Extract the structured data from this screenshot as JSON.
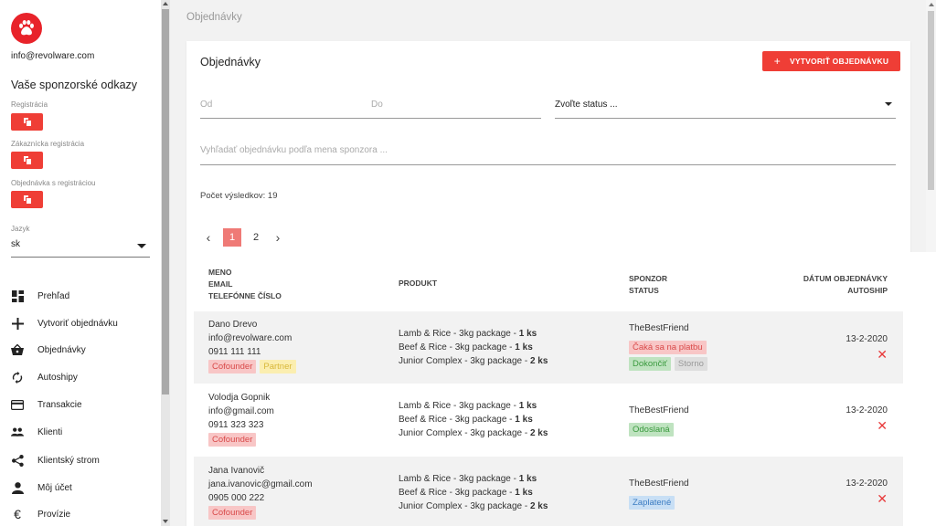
{
  "sidebar": {
    "email": "info@revolware.com",
    "sponsor_links_title": "Vaše sponzorské odkazy",
    "links": [
      {
        "label": "Registrácia"
      },
      {
        "label": "Zákaznícka registrácia"
      },
      {
        "label": "Objednávka s registráciou"
      }
    ],
    "language": {
      "label": "Jazyk",
      "value": "sk"
    },
    "nav": [
      {
        "label": "Prehľad",
        "icon": "dashboard-icon"
      },
      {
        "label": "Vytvoriť objednávku",
        "icon": "plus-icon"
      },
      {
        "label": "Objednávky",
        "icon": "basket-icon"
      },
      {
        "label": "Autoshipy",
        "icon": "sync-icon"
      },
      {
        "label": "Transakcie",
        "icon": "credit-card-icon"
      },
      {
        "label": "Klienti",
        "icon": "people-icon"
      },
      {
        "label": "Klientský strom",
        "icon": "share-icon"
      },
      {
        "label": "Môj účet",
        "icon": "person-icon"
      },
      {
        "label": "Provízie",
        "icon": "euro-icon"
      }
    ]
  },
  "page": {
    "title": "Objednávky",
    "card_title": "Objednávky",
    "create_button": "VYTVORIŤ OBJEDNÁVKU"
  },
  "filters": {
    "from_placeholder": "Od",
    "to_placeholder": "Do",
    "status_value": "Zvoľte status ...",
    "search_placeholder": "Vyhľadať objednávku podľa mena sponzora ..."
  },
  "results": {
    "count_label": "Počet výsledkov: 19"
  },
  "pagination": {
    "pages": [
      "1",
      "2"
    ],
    "active": "1"
  },
  "table": {
    "headers": {
      "col1": [
        "MENO",
        "EMAIL",
        "TELEFÓNNE ČÍSLO"
      ],
      "col2": "PRODUKT",
      "col3": [
        "SPONZOR",
        "STATUS"
      ],
      "col4": [
        "DÁTUM OBJEDNÁVKY",
        "AUTOSHIP"
      ]
    },
    "rows": [
      {
        "name": "Dano Drevo",
        "email": "info@revolware.com",
        "phone": "0911 111 111",
        "tags": [
          "Cofounder",
          "Partner"
        ],
        "products": [
          {
            "name": "Lamb & Rice - 3kg package - ",
            "qty": "1 ks"
          },
          {
            "name": "Beef & Rice - 3kg package - ",
            "qty": "1 ks"
          },
          {
            "name": "Junior Complex - 3kg package - ",
            "qty": "2 ks"
          }
        ],
        "sponsor": "TheBestFriend",
        "status": "Čaká sa na platbu",
        "actions": [
          "Dokončiť",
          "Storno"
        ],
        "date": "13-2-2020"
      },
      {
        "name": "Volodja Gopnik",
        "email": "info@gmail.com",
        "phone": "0911 323 323",
        "tags": [
          "Cofounder"
        ],
        "products": [
          {
            "name": "Lamb & Rice - 3kg package - ",
            "qty": "1 ks"
          },
          {
            "name": "Beef & Rice - 3kg package - ",
            "qty": "1 ks"
          },
          {
            "name": "Junior Complex - 3kg package - ",
            "qty": "2 ks"
          }
        ],
        "sponsor": "TheBestFriend",
        "status": "Odoslaná",
        "date": "13-2-2020"
      },
      {
        "name": "Jana Ivanovič",
        "email": "jana.ivanovic@gmail.com",
        "phone": "0905 000 222",
        "tags": [
          "Cofounder"
        ],
        "products": [
          {
            "name": "Lamb & Rice - 3kg package - ",
            "qty": "1 ks"
          },
          {
            "name": "Beef & Rice - 3kg package - ",
            "qty": "1 ks"
          },
          {
            "name": "Junior Complex - 3kg package - ",
            "qty": "2 ks"
          }
        ],
        "sponsor": "TheBestFriend",
        "status": "Zaplatené",
        "date": "13-2-2020"
      }
    ]
  },
  "colors": {
    "accent": "#ef3e36",
    "sidebar_bg": "#ffffff",
    "page_bg": "#f2f2f2"
  }
}
